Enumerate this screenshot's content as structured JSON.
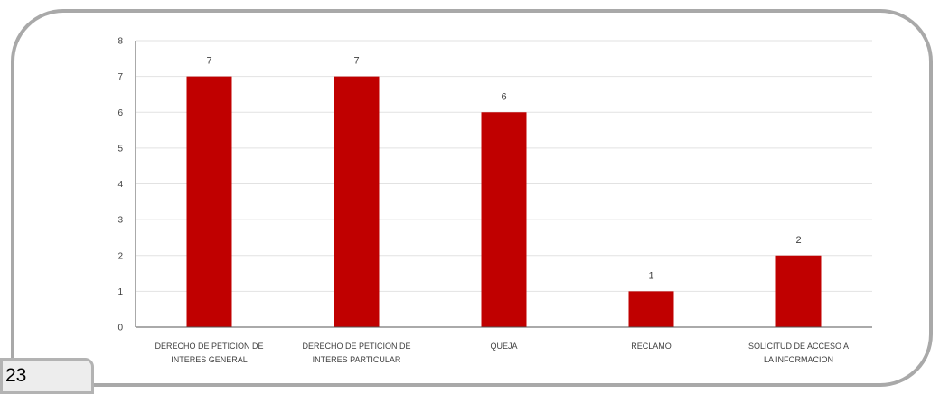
{
  "page": {
    "number": "23"
  },
  "colors": {
    "bar": "#c00000",
    "frame": "#a9a9a9",
    "grid": "#e2e2e2",
    "axis": "#555555"
  },
  "chart_data": {
    "type": "bar",
    "title": "",
    "xlabel": "",
    "ylabel": "",
    "categories": [
      "DERECHO DE PETICION DE INTERES GENERAL",
      "DERECHO DE PETICION DE INTERES PARTICULAR",
      "QUEJA",
      "RECLAMO",
      "SOLICITUD DE ACCESO A LA INFORMACION"
    ],
    "values": [
      7,
      7,
      6,
      1,
      2
    ],
    "ylim": [
      0,
      8
    ],
    "yticks": [
      "0",
      "1",
      "2",
      "3",
      "4",
      "5",
      "6",
      "7",
      "8"
    ],
    "grid": true,
    "legend": false
  }
}
